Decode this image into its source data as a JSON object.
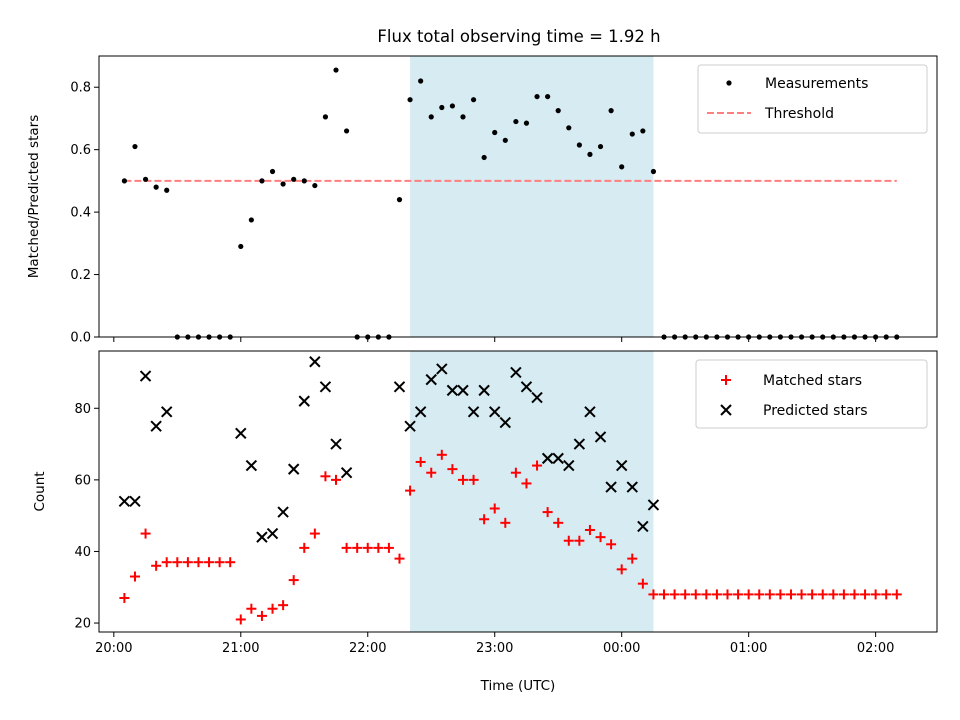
{
  "title": "Flux total observing time = 1.92 h",
  "colors": {
    "measurement": "#000000",
    "threshold": "#ff7f7f",
    "matched": "#ff0000",
    "predicted": "#000000",
    "window": "#add8e6"
  },
  "chart_data": [
    {
      "type": "scatter",
      "ylabel": "Matched/Predicted stars",
      "xlim": [
        "19:53",
        "02:29"
      ],
      "ylim": [
        0,
        0.9
      ],
      "yticks": [
        0.0,
        0.2,
        0.4,
        0.6,
        0.8
      ],
      "ytick_labels": [
        "0.0",
        "0.2",
        "0.4",
        "0.6",
        "0.8"
      ],
      "legend_position": "upper right",
      "legend": [
        "Measurements",
        "Threshold"
      ],
      "highlight_window": [
        "22:20",
        "00:15"
      ],
      "threshold": {
        "name": "Threshold",
        "value": 0.5,
        "x_range": [
          "20:05",
          "02:10"
        ]
      },
      "series": [
        {
          "name": "Measurements",
          "points": [
            [
              "20:05",
              0.5
            ],
            [
              "20:10",
              0.61
            ],
            [
              "20:15",
              0.505
            ],
            [
              "20:20",
              0.48
            ],
            [
              "20:25",
              0.47
            ],
            [
              "20:30",
              0
            ],
            [
              "20:35",
              0
            ],
            [
              "20:40",
              0
            ],
            [
              "20:45",
              0
            ],
            [
              "20:50",
              0
            ],
            [
              "20:55",
              0
            ],
            [
              "21:00",
              0.29
            ],
            [
              "21:05",
              0.375
            ],
            [
              "21:10",
              0.5
            ],
            [
              "21:15",
              0.53
            ],
            [
              "21:20",
              0.49
            ],
            [
              "21:25",
              0.505
            ],
            [
              "21:30",
              0.5
            ],
            [
              "21:35",
              0.485
            ],
            [
              "21:40",
              0.705
            ],
            [
              "21:45",
              0.855
            ],
            [
              "21:50",
              0.66
            ],
            [
              "21:55",
              0
            ],
            [
              "22:00",
              0
            ],
            [
              "22:05",
              0
            ],
            [
              "22:10",
              0
            ],
            [
              "22:15",
              0.44
            ],
            [
              "22:20",
              0.76
            ],
            [
              "22:25",
              0.82
            ],
            [
              "22:30",
              0.705
            ],
            [
              "22:35",
              0.735
            ],
            [
              "22:40",
              0.74
            ],
            [
              "22:45",
              0.705
            ],
            [
              "22:50",
              0.76
            ],
            [
              "22:55",
              0.575
            ],
            [
              "23:00",
              0.655
            ],
            [
              "23:05",
              0.63
            ],
            [
              "23:10",
              0.69
            ],
            [
              "23:15",
              0.685
            ],
            [
              "23:20",
              0.77
            ],
            [
              "23:25",
              0.77
            ],
            [
              "23:30",
              0.725
            ],
            [
              "23:35",
              0.67
            ],
            [
              "23:40",
              0.615
            ],
            [
              "23:45",
              0.585
            ],
            [
              "23:50",
              0.61
            ],
            [
              "23:55",
              0.725
            ],
            [
              "00:00",
              0.545
            ],
            [
              "00:05",
              0.65
            ],
            [
              "00:10",
              0.66
            ],
            [
              "00:15",
              0.53
            ],
            [
              "00:20",
              0
            ],
            [
              "00:25",
              0
            ],
            [
              "00:30",
              0
            ],
            [
              "00:35",
              0
            ],
            [
              "00:40",
              0
            ],
            [
              "00:45",
              0
            ],
            [
              "00:50",
              0
            ],
            [
              "00:55",
              0
            ],
            [
              "01:00",
              0
            ],
            [
              "01:05",
              0
            ],
            [
              "01:10",
              0
            ],
            [
              "01:15",
              0
            ],
            [
              "01:20",
              0
            ],
            [
              "01:25",
              0
            ],
            [
              "01:30",
              0
            ],
            [
              "01:35",
              0
            ],
            [
              "01:40",
              0
            ],
            [
              "01:45",
              0
            ],
            [
              "01:50",
              0
            ],
            [
              "01:55",
              0
            ],
            [
              "02:00",
              0
            ],
            [
              "02:05",
              0
            ],
            [
              "02:10",
              0
            ]
          ]
        }
      ]
    },
    {
      "type": "scatter",
      "xlabel": "Time (UTC)",
      "ylabel": "Count",
      "xlim": [
        "19:53",
        "02:29"
      ],
      "ylim": [
        17.5,
        96
      ],
      "yticks": [
        20,
        40,
        60,
        80
      ],
      "ytick_labels": [
        "20",
        "40",
        "60",
        "80"
      ],
      "xticks": [
        "20:00",
        "21:00",
        "22:00",
        "23:00",
        "00:00",
        "01:00",
        "02:00"
      ],
      "legend_position": "upper right",
      "legend": [
        "Matched stars",
        "Predicted stars"
      ],
      "highlight_window": [
        "22:20",
        "00:15"
      ],
      "series": [
        {
          "name": "Matched stars",
          "marker": "plus",
          "points": [
            [
              "20:05",
              27
            ],
            [
              "20:10",
              33
            ],
            [
              "20:15",
              45
            ],
            [
              "20:20",
              36
            ],
            [
              "20:25",
              37
            ],
            [
              "20:30",
              37
            ],
            [
              "20:35",
              37
            ],
            [
              "20:40",
              37
            ],
            [
              "20:45",
              37
            ],
            [
              "20:50",
              37
            ],
            [
              "20:55",
              37
            ],
            [
              "21:00",
              21
            ],
            [
              "21:05",
              24
            ],
            [
              "21:10",
              22
            ],
            [
              "21:15",
              24
            ],
            [
              "21:20",
              25
            ],
            [
              "21:25",
              32
            ],
            [
              "21:30",
              41
            ],
            [
              "21:35",
              45
            ],
            [
              "21:40",
              61
            ],
            [
              "21:45",
              60
            ],
            [
              "21:50",
              41
            ],
            [
              "21:55",
              41
            ],
            [
              "22:00",
              41
            ],
            [
              "22:05",
              41
            ],
            [
              "22:10",
              41
            ],
            [
              "22:15",
              38
            ],
            [
              "22:20",
              57
            ],
            [
              "22:25",
              65
            ],
            [
              "22:30",
              62
            ],
            [
              "22:35",
              67
            ],
            [
              "22:40",
              63
            ],
            [
              "22:45",
              60
            ],
            [
              "22:50",
              60
            ],
            [
              "22:55",
              49
            ],
            [
              "23:00",
              52
            ],
            [
              "23:05",
              48
            ],
            [
              "23:10",
              62
            ],
            [
              "23:15",
              59
            ],
            [
              "23:20",
              64
            ],
            [
              "23:25",
              51
            ],
            [
              "23:30",
              48
            ],
            [
              "23:35",
              43
            ],
            [
              "23:40",
              43
            ],
            [
              "23:45",
              46
            ],
            [
              "23:50",
              44
            ],
            [
              "23:55",
              42
            ],
            [
              "00:00",
              35
            ],
            [
              "00:05",
              38
            ],
            [
              "00:10",
              31
            ],
            [
              "00:15",
              28
            ],
            [
              "00:20",
              28
            ],
            [
              "00:25",
              28
            ],
            [
              "00:30",
              28
            ],
            [
              "00:35",
              28
            ],
            [
              "00:40",
              28
            ],
            [
              "00:45",
              28
            ],
            [
              "00:50",
              28
            ],
            [
              "00:55",
              28
            ],
            [
              "01:00",
              28
            ],
            [
              "01:05",
              28
            ],
            [
              "01:10",
              28
            ],
            [
              "01:15",
              28
            ],
            [
              "01:20",
              28
            ],
            [
              "01:25",
              28
            ],
            [
              "01:30",
              28
            ],
            [
              "01:35",
              28
            ],
            [
              "01:40",
              28
            ],
            [
              "01:45",
              28
            ],
            [
              "01:50",
              28
            ],
            [
              "01:55",
              28
            ],
            [
              "02:00",
              28
            ],
            [
              "02:05",
              28
            ],
            [
              "02:10",
              28
            ]
          ]
        },
        {
          "name": "Predicted stars",
          "marker": "x",
          "points": [
            [
              "20:05",
              54
            ],
            [
              "20:10",
              54
            ],
            [
              "20:15",
              89
            ],
            [
              "20:20",
              75
            ],
            [
              "20:25",
              79
            ],
            [
              "21:00",
              73
            ],
            [
              "21:05",
              64
            ],
            [
              "21:10",
              44
            ],
            [
              "21:15",
              45
            ],
            [
              "21:20",
              51
            ],
            [
              "21:25",
              63
            ],
            [
              "21:30",
              82
            ],
            [
              "21:35",
              93
            ],
            [
              "21:40",
              86
            ],
            [
              "21:45",
              70
            ],
            [
              "21:50",
              62
            ],
            [
              "22:15",
              86
            ],
            [
              "22:20",
              75
            ],
            [
              "22:25",
              79
            ],
            [
              "22:30",
              88
            ],
            [
              "22:35",
              91
            ],
            [
              "22:40",
              85
            ],
            [
              "22:45",
              85
            ],
            [
              "22:50",
              79
            ],
            [
              "22:55",
              85
            ],
            [
              "23:00",
              79
            ],
            [
              "23:05",
              76
            ],
            [
              "23:10",
              90
            ],
            [
              "23:15",
              86
            ],
            [
              "23:20",
              83
            ],
            [
              "23:25",
              66
            ],
            [
              "23:30",
              66
            ],
            [
              "23:35",
              64
            ],
            [
              "23:40",
              70
            ],
            [
              "23:45",
              79
            ],
            [
              "23:50",
              72
            ],
            [
              "23:55",
              58
            ],
            [
              "00:00",
              64
            ],
            [
              "00:05",
              58
            ],
            [
              "00:10",
              47
            ],
            [
              "00:15",
              53
            ]
          ]
        }
      ]
    }
  ]
}
